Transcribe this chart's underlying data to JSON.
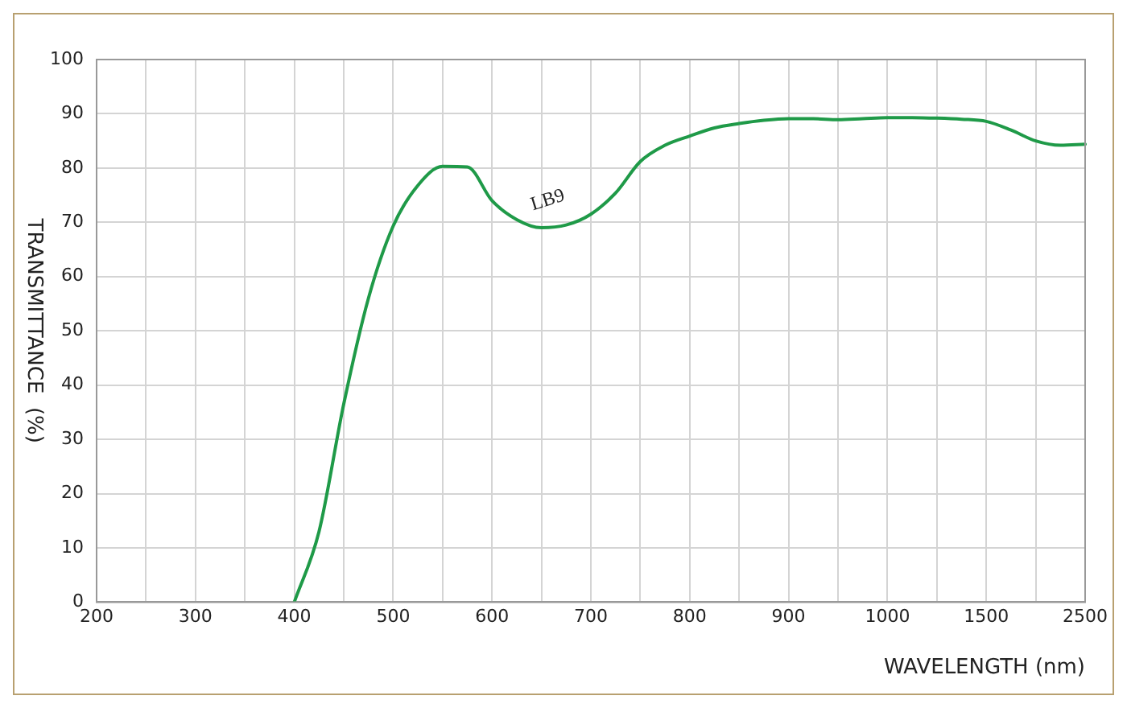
{
  "chart_data": {
    "type": "line",
    "xlabel": "WAVELENGTH (nm)",
    "ylabel": "TRANSMITTANCE  (%)",
    "categories": [
      "200",
      null,
      null,
      null,
      "300",
      null,
      null,
      null,
      "400",
      null,
      null,
      null,
      "500",
      null,
      null,
      null,
      "600",
      null,
      null,
      null,
      "700",
      null,
      null,
      null,
      "800",
      null,
      null,
      null,
      "900",
      null,
      null,
      null,
      "1000",
      null,
      null,
      null,
      "1500",
      null,
      null,
      null,
      "2500"
    ],
    "series": [
      {
        "name": "LB9",
        "color": "#1f9a48",
        "values": [
          null,
          null,
          null,
          null,
          null,
          null,
          null,
          null,
          0,
          13,
          36.5,
          56,
          69.3,
          76.8,
          80.3,
          80.2,
          74,
          70.5,
          69,
          69.5,
          71.5,
          75.4,
          81.2,
          84.2,
          85.9,
          87.4,
          88.2,
          88.8,
          89.1,
          89.1,
          88.9,
          89.1,
          89.3,
          89.3,
          89.2,
          89,
          88.6,
          87,
          85,
          84.2,
          84.4
        ]
      }
    ],
    "ylim": [
      0,
      100
    ],
    "yticks": [
      0,
      10,
      20,
      30,
      40,
      50,
      60,
      70,
      80,
      90,
      100
    ],
    "grid": true,
    "legend": false,
    "marker": "none",
    "line_style": "solid"
  }
}
